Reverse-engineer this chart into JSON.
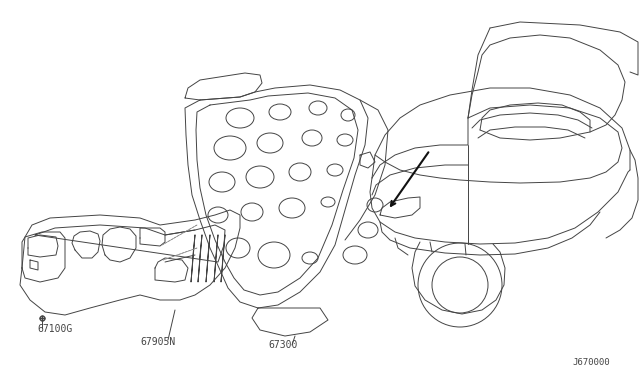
{
  "background_color": "#ffffff",
  "line_color": "#444444",
  "label_color": "#444444",
  "label_67100G": "67100G",
  "label_67905N": "67905N",
  "label_67300": "67300",
  "label_J670000": "J670000",
  "label_font_size": 7.0,
  "fig_width": 6.4,
  "fig_height": 3.72,
  "dpi": 100
}
